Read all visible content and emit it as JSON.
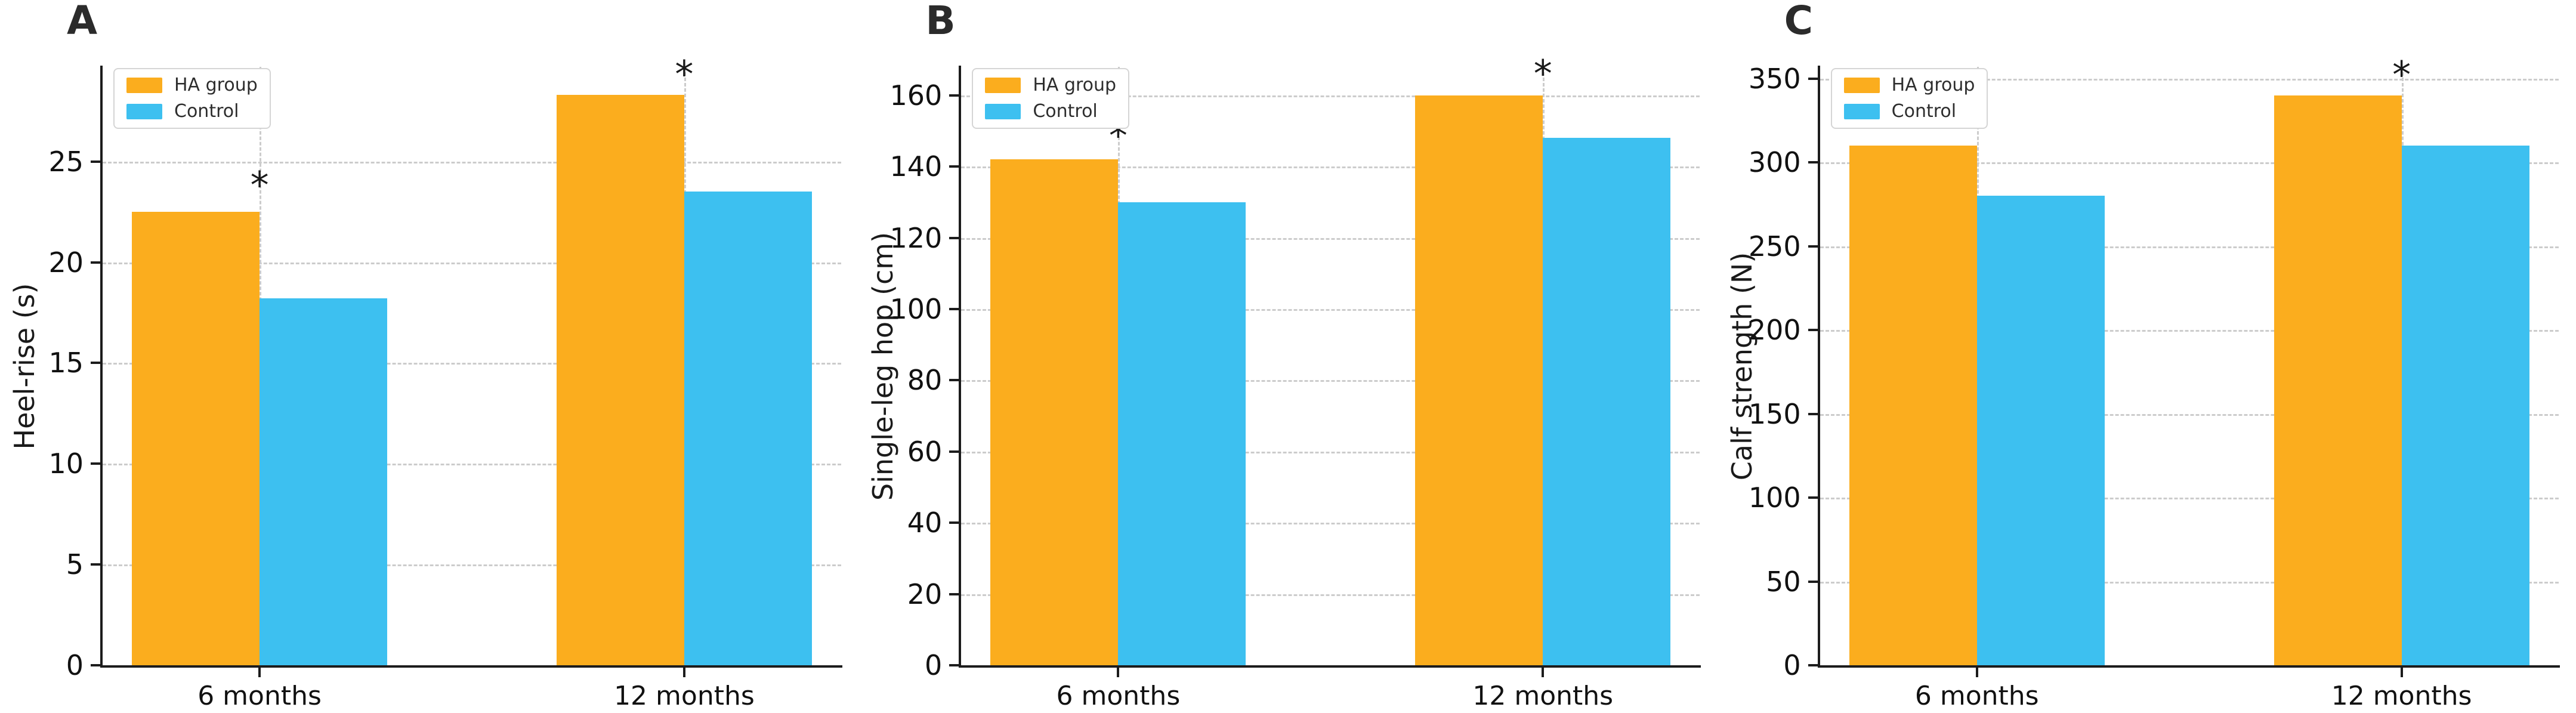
{
  "figure": {
    "background": "#ffffff",
    "axis_color": "#1c1c1c",
    "grid_color": "#cccccc",
    "sig_marker": "*",
    "legend": {
      "position": "upper-left",
      "items": [
        {
          "label": "HA group",
          "color": "#FBAD1E"
        },
        {
          "label": "Control",
          "color": "#3DC0F0"
        }
      ]
    }
  },
  "chart_data": [
    {
      "type": "bar",
      "panel_label": "A",
      "ylabel": "Heel-rise (s)",
      "xlabel": "",
      "categories": [
        "6 months",
        "12 months"
      ],
      "series": [
        {
          "name": "HA group",
          "color": "#FBAD1E",
          "values": [
            22.5,
            28.3
          ]
        },
        {
          "name": "Control",
          "color": "#3DC0F0",
          "values": [
            18.2,
            23.5
          ]
        }
      ],
      "yticks": [
        0,
        5,
        10,
        15,
        20,
        25
      ],
      "ylim": [
        0,
        29.7
      ],
      "grid": true,
      "legend_position": "upper-left",
      "significance": [
        {
          "category": "6 months",
          "marker": "*",
          "y": 23.9
        },
        {
          "category": "12 months",
          "marker": "*",
          "y": 29.4
        }
      ]
    },
    {
      "type": "bar",
      "panel_label": "B",
      "ylabel": "Single-leg hop (cm)",
      "xlabel": "",
      "categories": [
        "6 months",
        "12 months"
      ],
      "series": [
        {
          "name": "HA group",
          "color": "#FBAD1E",
          "values": [
            142,
            160
          ]
        },
        {
          "name": "Control",
          "color": "#3DC0F0",
          "values": [
            130,
            148
          ]
        }
      ],
      "yticks": [
        0,
        20,
        40,
        60,
        80,
        100,
        120,
        140,
        160
      ],
      "ylim": [
        0,
        168
      ],
      "grid": true,
      "legend_position": "upper-left",
      "significance": [
        {
          "category": "6 months",
          "marker": "*",
          "y": 149
        },
        {
          "category": "12 months",
          "marker": "*",
          "y": 166.5
        }
      ]
    },
    {
      "type": "bar",
      "panel_label": "C",
      "ylabel": "Calf strength (N)",
      "xlabel": "",
      "categories": [
        "6 months",
        "12 months"
      ],
      "series": [
        {
          "name": "HA group",
          "color": "#FBAD1E",
          "values": [
            310,
            340
          ]
        },
        {
          "name": "Control",
          "color": "#3DC0F0",
          "values": [
            280,
            310
          ]
        }
      ],
      "yticks": [
        0,
        50,
        100,
        150,
        200,
        250,
        300,
        350
      ],
      "ylim": [
        0,
        357
      ],
      "grid": true,
      "legend_position": "upper-left",
      "significance": [
        {
          "category": "6 months",
          "marker": "*",
          "y": 322
        },
        {
          "category": "12 months",
          "marker": "*",
          "y": 353
        }
      ]
    }
  ]
}
